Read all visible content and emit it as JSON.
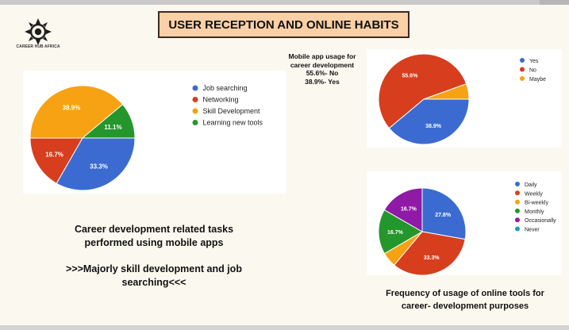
{
  "header": {
    "title": "USER RECEPTION AND ONLINE HABITS"
  },
  "brand": {
    "name": "CAREER HUB AFRICA"
  },
  "captions": {
    "tasks": [
      "Career development related tasks",
      "performed using mobile apps"
    ],
    "majorly": [
      ">>>Majorly skill development and job",
      "searching<<<"
    ],
    "mobile_usage": [
      "Mobile app usage for",
      "career development",
      "55.6%- No",
      "38.9%- Yes"
    ],
    "frequency": [
      "Frequency of usage of online tools for",
      "career- development purposes"
    ]
  },
  "chart_data": [
    {
      "type": "pie",
      "title": "",
      "labels": [
        "Job searching",
        "Networking",
        "Skill Development",
        "Learning new tools"
      ],
      "values": [
        33.3,
        16.7,
        38.9,
        11.1
      ],
      "value_labels": [
        "33.3%",
        "16.7%",
        "38.9%",
        "11.1%"
      ],
      "colors": [
        "#3b6bd1",
        "#d63e1e",
        "#f7a212",
        "#23962c"
      ],
      "legend": "right"
    },
    {
      "type": "pie",
      "title": "",
      "labels": [
        "Yes",
        "No",
        "Maybe"
      ],
      "values": [
        38.9,
        55.6,
        5.5
      ],
      "value_labels": [
        "38.9%",
        "55.6%",
        ""
      ],
      "colors": [
        "#3b6bd1",
        "#d63e1e",
        "#f7a212"
      ],
      "legend": "right"
    },
    {
      "type": "pie",
      "title": "",
      "labels": [
        "Daily",
        "Weekly",
        "Bi-weekly",
        "Monthly",
        "Occasionally",
        "Never"
      ],
      "values": [
        27.8,
        33.3,
        5.5,
        16.7,
        16.7,
        0
      ],
      "value_labels": [
        "27.8%",
        "33.3%",
        "",
        "16.7%",
        "16.7%",
        ""
      ],
      "colors": [
        "#3b6bd1",
        "#d63e1e",
        "#f7a212",
        "#23962c",
        "#8e1aa6",
        "#1aa0b8"
      ],
      "legend": "right"
    }
  ]
}
